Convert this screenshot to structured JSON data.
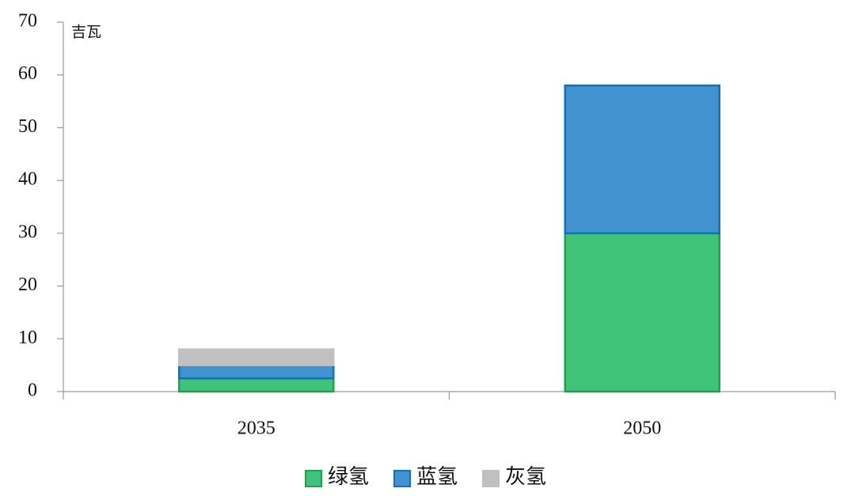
{
  "chart_data": {
    "type": "stacked_bar",
    "y_label": "吉瓦",
    "categories": [
      "2035",
      "2050"
    ],
    "series": [
      {
        "name": "绿氢",
        "color": "#3fc37a",
        "edgecolor": "#1aa34a",
        "values": [
          2.5,
          30
        ]
      },
      {
        "name": "蓝氢",
        "color": "#4193cf",
        "edgecolor": "#1070c0",
        "values": [
          2.5,
          28
        ]
      },
      {
        "name": "灰氢",
        "color": "#c0c0c0",
        "edgecolor": "#c0c0c0",
        "values": [
          3,
          0
        ]
      }
    ],
    "ylim": [
      0,
      70
    ],
    "yticks": [
      0,
      10,
      20,
      30,
      40,
      50,
      60,
      70
    ],
    "grid": false,
    "legend": "bottom"
  }
}
